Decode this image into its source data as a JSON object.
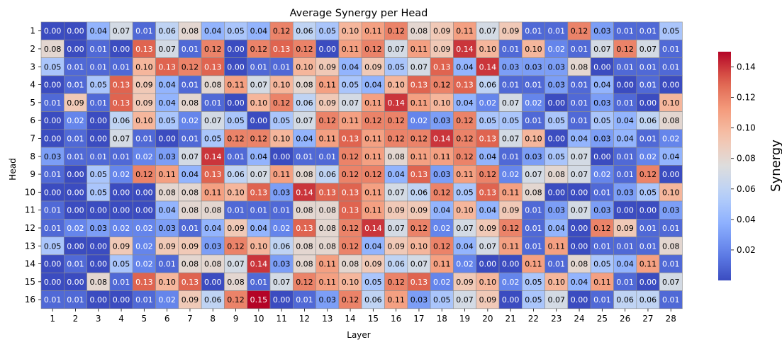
{
  "chart_data": {
    "type": "heatmap",
    "title": "Average Synergy per Head",
    "xlabel": "Layer",
    "ylabel": "Head",
    "colorbar_label": "Synergy",
    "colormap": "coolwarm",
    "vmin": 0.0,
    "vmax": 0.15,
    "colorbar_ticks": [
      "0.02",
      "0.04",
      "0.06",
      "0.08",
      "0.10",
      "0.12",
      "0.14"
    ],
    "x_categories": [
      "1",
      "2",
      "3",
      "4",
      "5",
      "6",
      "7",
      "8",
      "9",
      "10",
      "11",
      "12",
      "13",
      "14",
      "15",
      "16",
      "17",
      "18",
      "19",
      "20",
      "21",
      "22",
      "23",
      "24",
      "25",
      "26",
      "27",
      "28"
    ],
    "y_categories": [
      "1",
      "2",
      "3",
      "4",
      "5",
      "6",
      "7",
      "8",
      "9",
      "10",
      "11",
      "12",
      "13",
      "14",
      "15",
      "16"
    ],
    "values": [
      [
        0.0,
        0.0,
        0.04,
        0.07,
        0.01,
        0.06,
        0.08,
        0.04,
        0.05,
        0.04,
        0.12,
        0.06,
        0.05,
        0.1,
        0.11,
        0.12,
        0.08,
        0.09,
        0.11,
        0.07,
        0.09,
        0.01,
        0.01,
        0.12,
        0.03,
        0.01,
        0.01,
        0.05
      ],
      [
        0.08,
        0.0,
        0.01,
        0.0,
        0.13,
        0.07,
        0.01,
        0.12,
        0.0,
        0.12,
        0.13,
        0.12,
        0.0,
        0.11,
        0.12,
        0.07,
        0.11,
        0.09,
        0.14,
        0.1,
        0.01,
        0.1,
        0.02,
        0.01,
        0.07,
        0.12,
        0.07,
        0.01
      ],
      [
        0.05,
        0.01,
        0.01,
        0.01,
        0.1,
        0.13,
        0.12,
        0.13,
        0.0,
        0.01,
        0.01,
        0.1,
        0.09,
        0.04,
        0.09,
        0.05,
        0.07,
        0.13,
        0.04,
        0.14,
        0.03,
        0.03,
        0.03,
        0.08,
        0.0,
        0.01,
        0.01,
        0.01
      ],
      [
        0.0,
        0.01,
        0.05,
        0.13,
        0.09,
        0.04,
        0.01,
        0.08,
        0.11,
        0.07,
        0.1,
        0.08,
        0.11,
        0.05,
        0.04,
        0.1,
        0.13,
        0.12,
        0.13,
        0.06,
        0.01,
        0.01,
        0.03,
        0.01,
        0.04,
        0.0,
        0.01,
        0.0
      ],
      [
        0.01,
        0.09,
        0.01,
        0.13,
        0.09,
        0.04,
        0.08,
        0.01,
        0.0,
        0.1,
        0.12,
        0.06,
        0.09,
        0.07,
        0.11,
        0.14,
        0.11,
        0.1,
        0.04,
        0.02,
        0.07,
        0.02,
        0.0,
        0.01,
        0.03,
        0.01,
        0.0,
        0.1
      ],
      [
        0.0,
        0.02,
        0.0,
        0.06,
        0.1,
        0.05,
        0.02,
        0.07,
        0.05,
        0.0,
        0.05,
        0.07,
        0.12,
        0.11,
        0.12,
        0.12,
        0.02,
        0.03,
        0.12,
        0.05,
        0.05,
        0.01,
        0.05,
        0.01,
        0.05,
        0.04,
        0.06,
        0.08
      ],
      [
        0.0,
        0.01,
        0.0,
        0.07,
        0.01,
        0.0,
        0.01,
        0.05,
        0.12,
        0.12,
        0.1,
        0.04,
        0.11,
        0.13,
        0.11,
        0.12,
        0.12,
        0.14,
        0.12,
        0.13,
        0.07,
        0.1,
        0.0,
        0.04,
        0.03,
        0.04,
        0.01,
        0.02
      ],
      [
        0.03,
        0.01,
        0.01,
        0.01,
        0.02,
        0.03,
        0.07,
        0.14,
        0.01,
        0.04,
        0.0,
        0.01,
        0.01,
        0.12,
        0.11,
        0.08,
        0.11,
        0.11,
        0.12,
        0.04,
        0.01,
        0.03,
        0.05,
        0.07,
        0.0,
        0.01,
        0.02,
        0.04
      ],
      [
        0.01,
        0.0,
        0.05,
        0.02,
        0.12,
        0.11,
        0.04,
        0.13,
        0.06,
        0.07,
        0.11,
        0.08,
        0.06,
        0.12,
        0.12,
        0.04,
        0.13,
        0.03,
        0.11,
        0.12,
        0.02,
        0.07,
        0.08,
        0.07,
        0.02,
        0.01,
        0.12,
        0.0
      ],
      [
        0.0,
        0.0,
        0.05,
        0.0,
        0.0,
        0.08,
        0.08,
        0.11,
        0.1,
        0.13,
        0.03,
        0.14,
        0.13,
        0.13,
        0.11,
        0.07,
        0.06,
        0.12,
        0.05,
        0.13,
        0.11,
        0.08,
        0.0,
        0.0,
        0.01,
        0.03,
        0.05,
        0.1
      ],
      [
        0.01,
        0.0,
        0.0,
        0.0,
        0.0,
        0.04,
        0.08,
        0.08,
        0.01,
        0.01,
        0.01,
        0.08,
        0.08,
        0.13,
        0.11,
        0.09,
        0.09,
        0.04,
        0.1,
        0.04,
        0.09,
        0.01,
        0.03,
        0.07,
        0.03,
        0.0,
        0.0,
        0.03
      ],
      [
        0.01,
        0.02,
        0.03,
        0.02,
        0.02,
        0.03,
        0.01,
        0.04,
        0.09,
        0.04,
        0.02,
        0.13,
        0.08,
        0.12,
        0.14,
        0.07,
        0.12,
        0.02,
        0.07,
        0.09,
        0.12,
        0.01,
        0.04,
        0.0,
        0.12,
        0.09,
        0.01,
        0.01
      ],
      [
        0.05,
        0.0,
        0.0,
        0.09,
        0.02,
        0.09,
        0.09,
        0.03,
        0.12,
        0.1,
        0.06,
        0.08,
        0.08,
        0.12,
        0.04,
        0.09,
        0.1,
        0.12,
        0.04,
        0.07,
        0.11,
        0.01,
        0.11,
        0.0,
        0.01,
        0.01,
        0.01,
        0.08
      ],
      [
        0.0,
        0.01,
        0.0,
        0.05,
        0.02,
        0.01,
        0.08,
        0.08,
        0.07,
        0.14,
        0.03,
        0.08,
        0.11,
        0.08,
        0.09,
        0.06,
        0.07,
        0.11,
        0.02,
        0.0,
        0.0,
        0.11,
        0.01,
        0.08,
        0.05,
        0.04,
        0.11,
        0.01
      ],
      [
        0.0,
        0.0,
        0.08,
        0.01,
        0.13,
        0.1,
        0.13,
        0.0,
        0.08,
        0.01,
        0.07,
        0.12,
        0.11,
        0.1,
        0.05,
        0.12,
        0.13,
        0.02,
        0.09,
        0.1,
        0.02,
        0.05,
        0.1,
        0.04,
        0.11,
        0.01,
        0.0,
        0.07
      ],
      [
        0.01,
        0.01,
        0.0,
        0.0,
        0.01,
        0.02,
        0.09,
        0.06,
        0.12,
        0.15,
        0.0,
        0.01,
        0.03,
        0.12,
        0.06,
        0.11,
        0.03,
        0.05,
        0.07,
        0.09,
        0.0,
        0.05,
        0.07,
        0.0,
        0.01,
        0.06,
        0.06,
        0.01
      ]
    ]
  }
}
